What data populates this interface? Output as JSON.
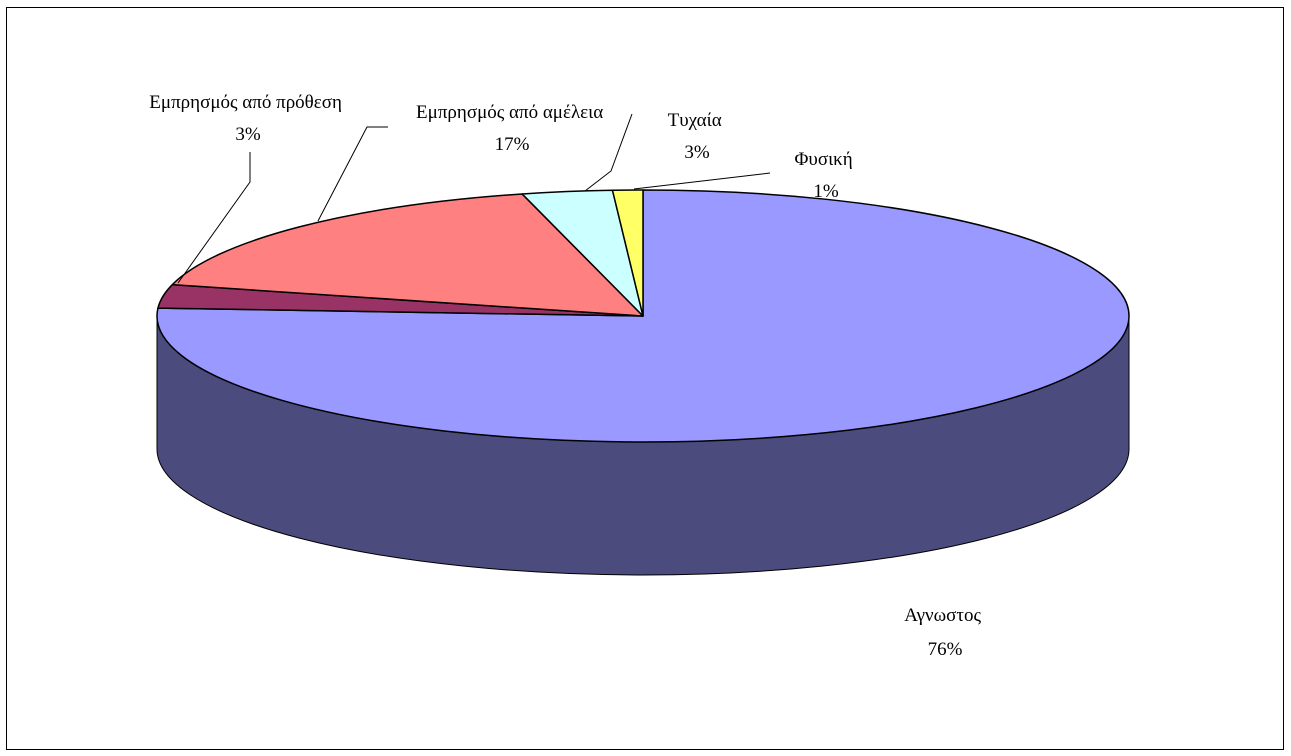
{
  "chart_data": {
    "type": "pie",
    "style": "3d",
    "slices": [
      {
        "name": "Αγνωστος",
        "label": "76%",
        "value": 76,
        "color": "#9999ff",
        "side_color": "#4b4b7d"
      },
      {
        "name": "Εμπρησμός από πρόθεση",
        "label": "3%",
        "value": 3,
        "color": "#993366",
        "side_color": "#4d1933"
      },
      {
        "name": "Εμπρησμός από αμέλεια",
        "label": "17%",
        "value": 17,
        "color": "#ff8080",
        "side_color": "#804040"
      },
      {
        "name": "Τυχαία",
        "label": "3%",
        "value": 3,
        "color": "#ccffff",
        "side_color": "#668080"
      },
      {
        "name": "Φυσική",
        "label": "1%",
        "value": 1,
        "color": "#ffff66",
        "side_color": "#808033"
      }
    ],
    "legend": "none"
  }
}
